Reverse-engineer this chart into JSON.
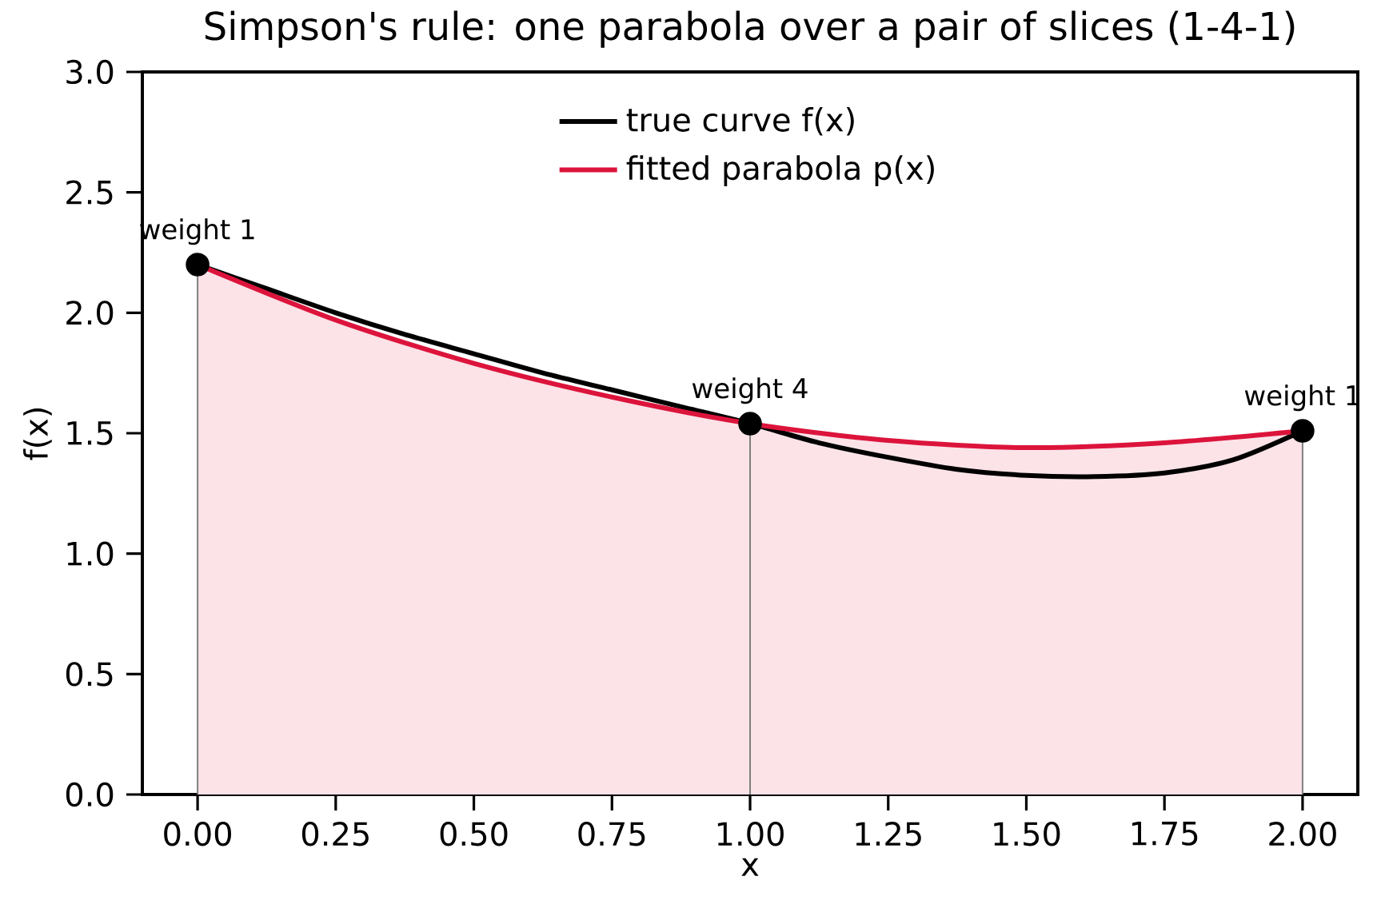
{
  "chart_data": {
    "type": "line",
    "title": "Simpson's rule: one parabola over a pair of slices (1-4-1)",
    "xlabel": "x",
    "ylabel": "f(x)",
    "series": [
      {
        "name": "true curve f(x)",
        "color": "#000000",
        "x": [
          0,
          0.125,
          0.25,
          0.375,
          0.5,
          0.625,
          0.75,
          0.875,
          1,
          1.125,
          1.25,
          1.375,
          1.5,
          1.625,
          1.75,
          1.875,
          2
        ],
        "values": [
          2.2,
          2.1,
          2.0,
          1.91,
          1.83,
          1.75,
          1.68,
          1.61,
          1.54,
          1.46,
          1.4,
          1.35,
          1.325,
          1.32,
          1.335,
          1.39,
          1.51
        ]
      },
      {
        "name": "fitted parabola p(x)",
        "type": "area",
        "color": "#dc143c",
        "x": [
          0,
          0.25,
          0.5,
          0.75,
          1,
          1.25,
          1.5,
          1.75,
          2
        ],
        "values": [
          2.2,
          1.97,
          1.79,
          1.65,
          1.54,
          1.47,
          1.44,
          1.46,
          1.51
        ]
      },
      {
        "type": "lollipop",
        "color": "#000000",
        "x": [
          0,
          1,
          2
        ],
        "values": [
          2.2,
          1.54,
          1.51
        ]
      }
    ],
    "annotations": [
      {
        "text": "weight 1",
        "x": 0,
        "y": 2.2
      },
      {
        "text": "weight 4",
        "x": 1,
        "y": 1.54
      },
      {
        "text": "weight 1",
        "x": 2,
        "y": 1.51
      }
    ],
    "xlim": [
      -0.1,
      2.1
    ],
    "ylim": [
      0,
      3
    ],
    "xticks": [
      {
        "value": 0,
        "label": "0.00"
      },
      {
        "value": 0.25,
        "label": "0.25"
      },
      {
        "value": 0.5,
        "label": "0.50"
      },
      {
        "value": 0.75,
        "label": "0.75"
      },
      {
        "value": 1,
        "label": "1.00"
      },
      {
        "value": 1.25,
        "label": "1.25"
      },
      {
        "value": 1.5,
        "label": "1.50"
      },
      {
        "value": 1.75,
        "label": "1.75"
      },
      {
        "value": 2,
        "label": "2.00"
      }
    ],
    "yticks": [
      {
        "value": 0,
        "label": "0.0"
      },
      {
        "value": 0.5,
        "label": "0.5"
      },
      {
        "value": 1,
        "label": "1.0"
      },
      {
        "value": 1.5,
        "label": "1.5"
      },
      {
        "value": 2,
        "label": "2.0"
      },
      {
        "value": 2.5,
        "label": "2.5"
      },
      {
        "value": 3,
        "label": "3.0"
      }
    ],
    "legend": "top"
  }
}
